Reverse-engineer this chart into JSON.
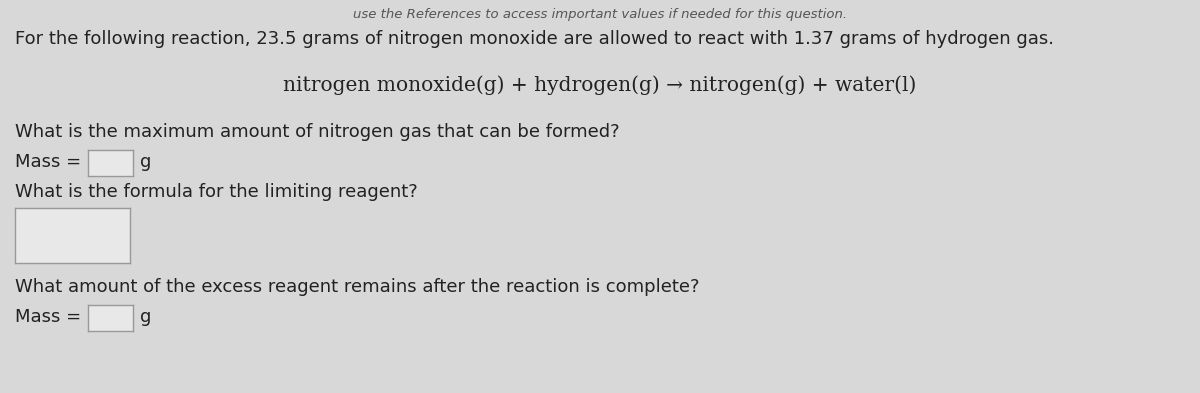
{
  "background_color": "#d8d8d8",
  "header_text": "use the References to access important values if needed for this question.",
  "intro_text": "For the following reaction, 23.5 grams of nitrogen monoxide are allowed to react with 1.37 grams of hydrogen gas.",
  "equation_text": "nitrogen monoxide(g) + hydrogen(g) → nitrogen(g) + water(l)",
  "q1_text": "What is the maximum amount of nitrogen gas that can be formed?",
  "q1_label": "Mass = ",
  "q1_unit": "g",
  "q2_text": "What is the formula for the limiting reagent?",
  "q3_text": "What amount of the excess reagent remains after the reaction is complete?",
  "q3_label": "Mass = ",
  "q3_unit": "g",
  "text_color": "#222222",
  "header_color": "#555555",
  "box_facecolor": "#e8e8e8",
  "box_edgecolor": "#999999",
  "font_size_header": 9.5,
  "font_size_intro": 13.0,
  "font_size_equation": 14.5,
  "font_size_question": 13.0,
  "font_size_label": 13.0
}
